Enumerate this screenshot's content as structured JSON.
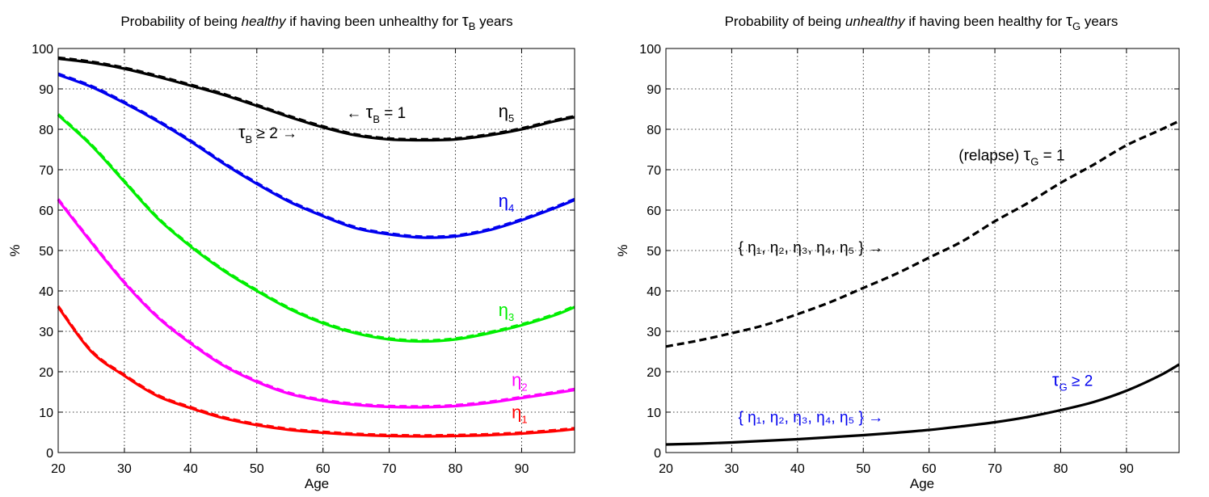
{
  "chart_data": [
    {
      "type": "line",
      "title": {
        "pre": "Probability of being ",
        "em": "healthy",
        "post": " if having been unhealthy for ",
        "sym": "τ",
        "sub": "B",
        "end": " years"
      },
      "xlabel": "Age",
      "ylabel": "%",
      "xlim": [
        20,
        98
      ],
      "ylim": [
        0,
        100
      ],
      "xticks": [
        20,
        30,
        40,
        50,
        60,
        70,
        80,
        90
      ],
      "yticks": [
        0,
        10,
        20,
        30,
        40,
        50,
        60,
        70,
        80,
        90,
        100
      ],
      "grid": true,
      "x": [
        20,
        25,
        30,
        35,
        40,
        45,
        50,
        55,
        60,
        65,
        70,
        75,
        80,
        85,
        90,
        95,
        98
      ],
      "series": [
        {
          "name": "η1",
          "color": "#ff0000",
          "style": "solid",
          "values": [
            36,
            25,
            19,
            14,
            11,
            8.5,
            6.8,
            5.6,
            4.9,
            4.4,
            4.1,
            4.0,
            4.1,
            4.3,
            4.7,
            5.3,
            5.8
          ]
        },
        {
          "name": "η1",
          "color": "#ff0000",
          "style": "dashed",
          "values": [
            36,
            25,
            19,
            14,
            11,
            8.5,
            6.8,
            5.6,
            4.9,
            4.4,
            4.1,
            4.0,
            4.1,
            4.3,
            4.7,
            5.3,
            5.8
          ]
        },
        {
          "name": "η2",
          "color": "#ff00ff",
          "style": "solid",
          "values": [
            62.5,
            52,
            42,
            33.5,
            27,
            21.5,
            17.5,
            14.5,
            12.8,
            11.8,
            11.3,
            11.2,
            11.5,
            12.3,
            13.5,
            14.7,
            15.5
          ]
        },
        {
          "name": "η2",
          "color": "#ff00ff",
          "style": "dashed",
          "values": [
            62.5,
            52,
            42,
            33.5,
            27,
            21.5,
            17.5,
            14.5,
            12.8,
            11.8,
            11.3,
            11.2,
            11.5,
            12.3,
            13.5,
            14.7,
            15.5
          ]
        },
        {
          "name": "η3",
          "color": "#00ee00",
          "style": "solid",
          "values": [
            83.5,
            76,
            67,
            58,
            51,
            45,
            40,
            35.5,
            32,
            29.5,
            28,
            27.5,
            28,
            29.5,
            31.5,
            34,
            36
          ]
        },
        {
          "name": "η3",
          "color": "#00ee00",
          "style": "dashed",
          "values": [
            83.5,
            76,
            67,
            58,
            51,
            45,
            40,
            35.5,
            32,
            29.5,
            28,
            27.5,
            28,
            29.5,
            31.5,
            34,
            36
          ]
        },
        {
          "name": "η4",
          "color": "#0000ee",
          "style": "solid",
          "values": [
            93.5,
            90.5,
            86.5,
            82,
            77,
            71.5,
            66.5,
            62,
            58.5,
            55.5,
            54,
            53.2,
            53.5,
            55,
            57.5,
            60.5,
            62.5
          ]
        },
        {
          "name": "η4",
          "color": "#0000ee",
          "style": "dashed",
          "values": [
            93.5,
            90.5,
            86.5,
            82,
            77,
            71.5,
            66.5,
            62,
            58.5,
            55.5,
            54,
            53.2,
            53.5,
            55,
            57.5,
            60.5,
            62.5
          ]
        },
        {
          "name": "η5",
          "color": "#000000",
          "style": "solid",
          "values": [
            97.5,
            96.5,
            95,
            93,
            90.8,
            88.5,
            85.8,
            83,
            80.5,
            78.5,
            77.5,
            77.3,
            77.5,
            78.5,
            80,
            82,
            83
          ]
        },
        {
          "name": "η5",
          "color": "#000000",
          "style": "dashed",
          "values": [
            97.5,
            96.5,
            95,
            93,
            90.8,
            88.5,
            85.8,
            83,
            80.5,
            78.5,
            77.5,
            77.3,
            77.5,
            78.5,
            80,
            82,
            83
          ]
        }
      ],
      "annotations": {
        "eta1": {
          "sym": "η",
          "sub": "1",
          "color": "#ff0000",
          "x": 88.5,
          "y": 8.5
        },
        "eta2": {
          "sym": "η",
          "sub": "2",
          "color": "#ff00ff",
          "x": 88.5,
          "y": 16.5
        },
        "eta3": {
          "sym": "η",
          "sub": "3",
          "color": "#00ee00",
          "x": 86.5,
          "y": 33.8
        },
        "eta4": {
          "sym": "η",
          "sub": "4",
          "color": "#0000ee",
          "x": 86.5,
          "y": 60.8
        },
        "eta5": {
          "sym": "η",
          "sub": "5",
          "color": "#000000",
          "x": 86.5,
          "y": 83
        },
        "tau1": {
          "pre": "← ",
          "sym": "τ",
          "sub": "B",
          "post": " = 1",
          "x": 63.5,
          "y": 82.8
        },
        "tau2": {
          "pre": "",
          "sym": "τ",
          "sub": "B",
          "post": " ≥ 2  →",
          "x": 47.2,
          "y": 77.8
        }
      }
    },
    {
      "type": "line",
      "title": {
        "pre": "Probability of being ",
        "em": "unhealthy",
        "post": " if having been healthy for ",
        "sym": "τ",
        "sub": "G",
        "end": " years"
      },
      "xlabel": "Age",
      "ylabel": "%",
      "xlim": [
        20,
        98
      ],
      "ylim": [
        0,
        100
      ],
      "xticks": [
        20,
        30,
        40,
        50,
        60,
        70,
        80,
        90
      ],
      "yticks": [
        0,
        10,
        20,
        30,
        40,
        50,
        60,
        70,
        80,
        90,
        100
      ],
      "grid": true,
      "x": [
        20,
        25,
        30,
        35,
        40,
        45,
        50,
        55,
        60,
        65,
        70,
        75,
        80,
        85,
        90,
        95,
        98
      ],
      "series": [
        {
          "name": "(relapse) τG = 1",
          "color": "#000000",
          "style": "dashed",
          "values": [
            26,
            27.5,
            29.3,
            31.3,
            34,
            37,
            40.5,
            44,
            48,
            52,
            57,
            61.5,
            66.5,
            71,
            75.8,
            79.5,
            81.8
          ]
        },
        {
          "name": "τG ≥ 2",
          "color": "#000000",
          "style": "solid",
          "values": [
            2,
            2.2,
            2.5,
            2.9,
            3.3,
            3.8,
            4.3,
            4.9,
            5.6,
            6.5,
            7.5,
            8.8,
            10.5,
            12.5,
            15.3,
            19,
            21.8
          ]
        }
      ],
      "annotations": {
        "relapse": {
          "pre": "(relapse) ",
          "sym": "τ",
          "sub": "G",
          "post": " = 1",
          "color": "#000000",
          "x": 64.5,
          "y": 72.3
        },
        "set_black": {
          "text": "{ η₁, η₂, η₃, η₄, η₅ } →",
          "color": "#000000",
          "x": 31,
          "y": 49.5
        },
        "tau_ge2": {
          "pre": "",
          "sym": "τ",
          "sub": "G",
          "post": " ≥ 2",
          "color": "#0000ee",
          "x": 78.7,
          "y": 16.5
        },
        "set_blue": {
          "text": "{ η₁, η₂, η₃, η₄, η₅ } →",
          "color": "#0000ee",
          "x": 31,
          "y": 7.5
        }
      }
    }
  ]
}
